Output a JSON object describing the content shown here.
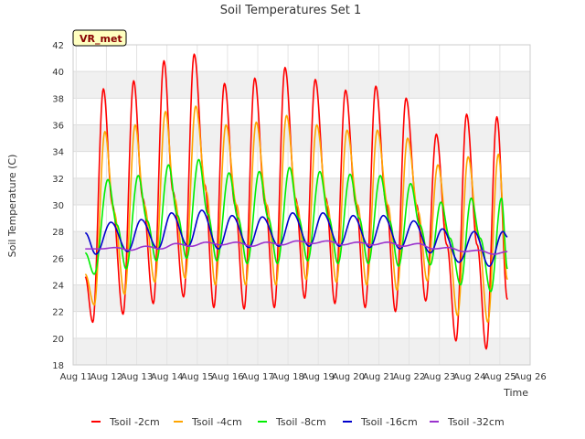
{
  "chart_data": {
    "type": "line",
    "title": "Soil Temperatures Set 1",
    "xlabel": "Time",
    "ylabel": "Soil Temperature (C)",
    "badge": "VR_met",
    "ylim": [
      18,
      42
    ],
    "yticks": [
      18,
      20,
      22,
      24,
      26,
      28,
      30,
      32,
      34,
      36,
      38,
      40,
      42
    ],
    "xlim": [
      10.9,
      26.0
    ],
    "xticks": [
      {
        "pos": 11,
        "label": "Aug 11"
      },
      {
        "pos": 12,
        "label": "Aug 12"
      },
      {
        "pos": 13,
        "label": "Aug 13"
      },
      {
        "pos": 14,
        "label": "Aug 14"
      },
      {
        "pos": 15,
        "label": "Aug 15"
      },
      {
        "pos": 16,
        "label": "Aug 16"
      },
      {
        "pos": 17,
        "label": "Aug 17"
      },
      {
        "pos": 18,
        "label": "Aug 18"
      },
      {
        "pos": 19,
        "label": "Aug 19"
      },
      {
        "pos": 20,
        "label": "Aug 20"
      },
      {
        "pos": 21,
        "label": "Aug 21"
      },
      {
        "pos": 22,
        "label": "Aug 22"
      },
      {
        "pos": 23,
        "label": "Aug 23"
      },
      {
        "pos": 24,
        "label": "Aug 24"
      },
      {
        "pos": 25,
        "label": "Aug 25"
      },
      {
        "pos": 26,
        "label": "Aug 26"
      }
    ],
    "grid": true,
    "legend_position": "bottom",
    "series": [
      {
        "name": "Tsoil -2cm",
        "color": "#ff0000",
        "x": [
          11.3,
          11.55,
          11.9,
          12.2,
          12.55,
          12.9,
          13.2,
          13.55,
          13.9,
          14.2,
          14.55,
          14.9,
          15.25,
          15.55,
          15.9,
          16.25,
          16.55,
          16.9,
          17.25,
          17.55,
          17.9,
          18.25,
          18.55,
          18.9,
          19.25,
          19.55,
          19.9,
          20.25,
          20.55,
          20.9,
          21.25,
          21.55,
          21.9,
          22.25,
          22.55,
          22.9,
          23.25,
          23.55,
          23.9,
          24.25,
          24.55,
          24.9,
          25.25
        ],
        "y": [
          24.6,
          21.2,
          38.7,
          30.0,
          21.8,
          39.3,
          30.5,
          22.6,
          40.8,
          31.0,
          23.1,
          41.3,
          31.5,
          22.3,
          39.1,
          30.0,
          22.2,
          39.5,
          30.0,
          22.3,
          40.3,
          30.5,
          23.0,
          39.4,
          30.5,
          22.6,
          38.6,
          30.0,
          22.3,
          38.9,
          30.0,
          22.0,
          38.0,
          30.0,
          22.8,
          35.3,
          27.0,
          19.8,
          36.8,
          27.0,
          19.2,
          36.6,
          22.9
        ]
      },
      {
        "name": "Tsoil -4cm",
        "color": "#ffa500",
        "x": [
          11.3,
          11.6,
          11.95,
          12.25,
          12.6,
          12.95,
          13.25,
          13.6,
          13.95,
          14.25,
          14.6,
          14.95,
          15.3,
          15.6,
          15.95,
          16.3,
          16.6,
          16.95,
          17.3,
          17.6,
          17.95,
          18.3,
          18.6,
          18.95,
          19.3,
          19.6,
          19.95,
          20.3,
          20.6,
          20.95,
          21.3,
          21.6,
          21.95,
          22.3,
          22.6,
          22.95,
          23.3,
          23.6,
          23.95,
          24.3,
          24.6,
          24.95,
          25.25
        ],
        "y": [
          24.8,
          22.5,
          35.5,
          29.5,
          23.3,
          36.0,
          30.0,
          24.2,
          37.0,
          30.5,
          24.5,
          37.4,
          31.0,
          24.0,
          36.0,
          30.0,
          24.0,
          36.2,
          30.0,
          24.0,
          36.7,
          30.0,
          24.4,
          36.0,
          30.0,
          24.2,
          35.6,
          30.0,
          24.0,
          35.6,
          30.0,
          23.6,
          35.0,
          29.5,
          24.3,
          33.0,
          27.5,
          21.7,
          33.6,
          27.5,
          21.2,
          33.8,
          24.4
        ]
      },
      {
        "name": "Tsoil -8cm",
        "color": "#00ee00",
        "x": [
          11.3,
          11.6,
          12.05,
          12.35,
          12.65,
          13.05,
          13.35,
          13.65,
          14.05,
          14.35,
          14.65,
          15.05,
          15.35,
          15.65,
          16.05,
          16.35,
          16.65,
          17.05,
          17.35,
          17.65,
          18.05,
          18.35,
          18.65,
          19.05,
          19.35,
          19.65,
          20.05,
          20.35,
          20.65,
          21.05,
          21.35,
          21.65,
          22.05,
          22.35,
          22.7,
          23.05,
          23.35,
          23.7,
          24.05,
          24.35,
          24.7,
          25.05,
          25.25
        ],
        "y": [
          26.4,
          24.8,
          31.9,
          28.5,
          25.2,
          32.2,
          28.8,
          25.8,
          33.0,
          29.2,
          26.0,
          33.4,
          29.3,
          25.8,
          32.4,
          29.0,
          25.6,
          32.5,
          29.0,
          25.6,
          32.8,
          29.0,
          25.8,
          32.5,
          29.0,
          25.6,
          32.3,
          29.0,
          25.6,
          32.2,
          28.8,
          25.4,
          31.6,
          28.5,
          25.5,
          30.2,
          27.5,
          24.0,
          30.5,
          27.5,
          23.5,
          30.5,
          25.2
        ]
      },
      {
        "name": "Tsoil -16cm",
        "color": "#0000cc",
        "x": [
          11.3,
          11.65,
          12.15,
          12.7,
          13.15,
          13.7,
          14.15,
          14.7,
          15.15,
          15.7,
          16.15,
          16.7,
          17.15,
          17.7,
          18.15,
          18.7,
          19.15,
          19.7,
          20.15,
          20.7,
          21.15,
          21.7,
          22.15,
          22.7,
          23.1,
          23.65,
          24.15,
          24.65,
          25.1,
          25.25
        ],
        "y": [
          27.9,
          26.3,
          28.7,
          26.5,
          28.9,
          26.7,
          29.4,
          26.9,
          29.6,
          26.7,
          29.2,
          26.8,
          29.1,
          26.9,
          29.4,
          26.9,
          29.4,
          26.9,
          29.2,
          26.8,
          29.2,
          26.7,
          28.8,
          26.4,
          28.2,
          25.7,
          28.0,
          25.4,
          28.0,
          27.6
        ]
      },
      {
        "name": "Tsoil -32cm",
        "color": "#9a32cd",
        "x": [
          11.3,
          11.8,
          12.3,
          12.8,
          13.3,
          13.8,
          14.3,
          14.8,
          15.3,
          15.8,
          16.3,
          16.8,
          17.3,
          17.8,
          18.3,
          18.8,
          19.3,
          19.8,
          20.3,
          20.8,
          21.3,
          21.8,
          22.3,
          22.8,
          23.3,
          23.8,
          24.3,
          24.8,
          25.25
        ],
        "y": [
          26.7,
          26.7,
          26.8,
          26.6,
          26.9,
          26.7,
          27.1,
          26.9,
          27.2,
          27.0,
          27.2,
          26.9,
          27.2,
          27.0,
          27.3,
          27.1,
          27.3,
          27.0,
          27.2,
          27.0,
          27.2,
          26.9,
          27.1,
          26.7,
          26.8,
          26.5,
          26.6,
          26.3,
          26.5
        ]
      }
    ]
  }
}
